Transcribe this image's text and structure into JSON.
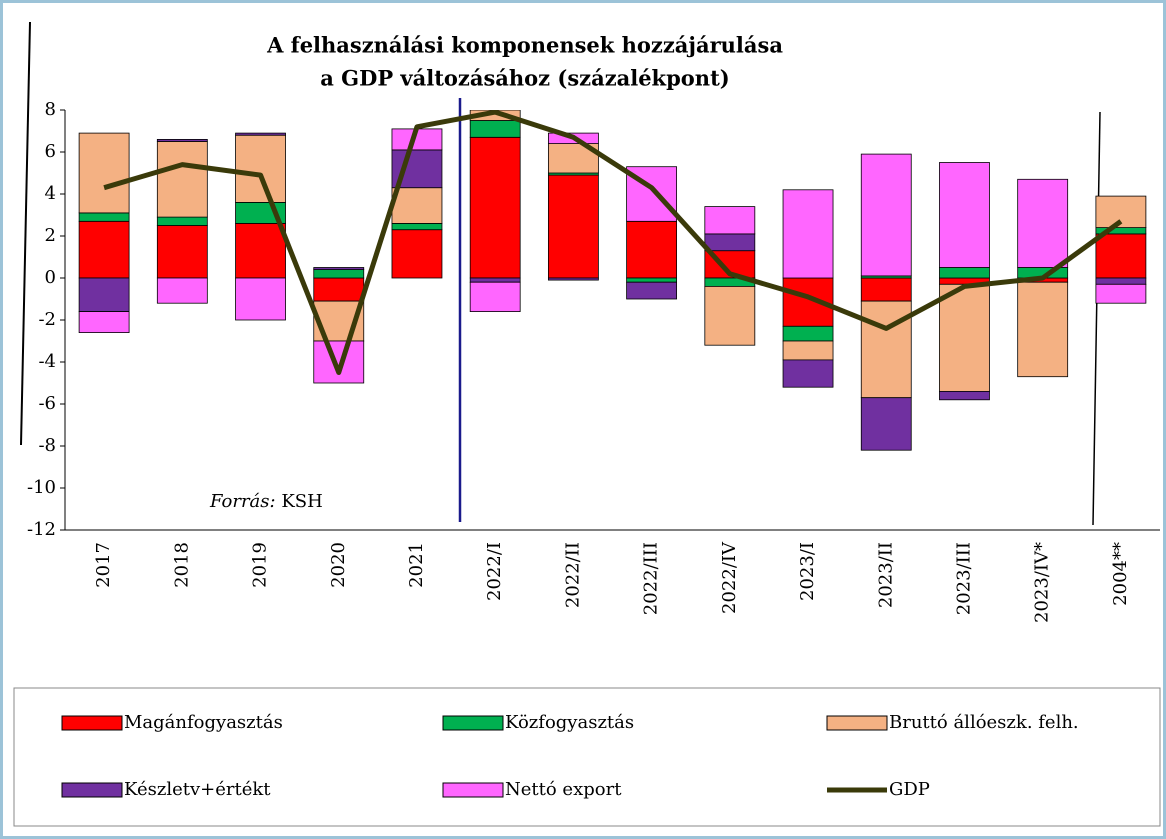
{
  "chart_data": {
    "type": "stacked-bar-line",
    "title": [
      "A felhasználási komponensek hozzájárulása",
      "a GDP változásához (százalékpont)"
    ],
    "annotation": {
      "prefix": "Forrás:",
      "text": "KSH"
    },
    "categories": [
      "2017",
      "2018",
      "2019",
      "2020",
      "2021",
      "2022/I",
      "2022/II",
      "2022/III",
      "2022/IV",
      "2023/I",
      "2023/II",
      "2023/III",
      "2023/IV*",
      "2004**"
    ],
    "ylim": [
      -12,
      8
    ],
    "yticks": [
      -12,
      -10,
      -8,
      -6,
      -4,
      -2,
      0,
      2,
      4,
      6,
      8
    ],
    "series": [
      {
        "name": "Magánfogyasztás",
        "color": "#ff0000",
        "values": [
          2.7,
          2.5,
          2.6,
          -1.1,
          2.3,
          6.7,
          4.9,
          2.7,
          1.3,
          -2.3,
          -1.1,
          -0.3,
          -0.2,
          2.1
        ]
      },
      {
        "name": "Közfogyasztás",
        "color": "#00b050",
        "values": [
          0.4,
          0.4,
          1.0,
          0.4,
          0.3,
          0.8,
          0.1,
          -0.2,
          -0.4,
          -0.7,
          0.1,
          0.5,
          0.5,
          0.3
        ]
      },
      {
        "name": "Bruttó állóeszk. felh.",
        "color": "#f4b183",
        "values": [
          3.8,
          3.6,
          3.2,
          -1.9,
          1.7,
          0.5,
          1.4,
          0.0,
          -2.8,
          -0.9,
          -4.6,
          -5.1,
          -4.5,
          1.5
        ]
      },
      {
        "name": "Készletv+értékt",
        "color": "#7030a0",
        "values": [
          -1.6,
          0.1,
          0.1,
          0.1,
          1.8,
          -0.2,
          -0.1,
          -0.8,
          0.8,
          -1.3,
          -2.5,
          -0.4,
          0.0,
          -0.3
        ]
      },
      {
        "name": "Nettó export",
        "color": "#ff66ff",
        "values": [
          -1.0,
          -1.2,
          -2.0,
          -2.0,
          1.0,
          -1.4,
          0.5,
          2.6,
          1.3,
          4.2,
          5.8,
          5.0,
          4.2,
          -0.9
        ]
      },
      {
        "name": "GDP",
        "type": "line",
        "color": "#3a3a0a",
        "values": [
          4.3,
          5.4,
          4.9,
          -4.5,
          7.2,
          7.9,
          6.7,
          4.3,
          0.2,
          -0.9,
          -2.4,
          -0.4,
          0.0,
          2.7
        ]
      }
    ]
  }
}
